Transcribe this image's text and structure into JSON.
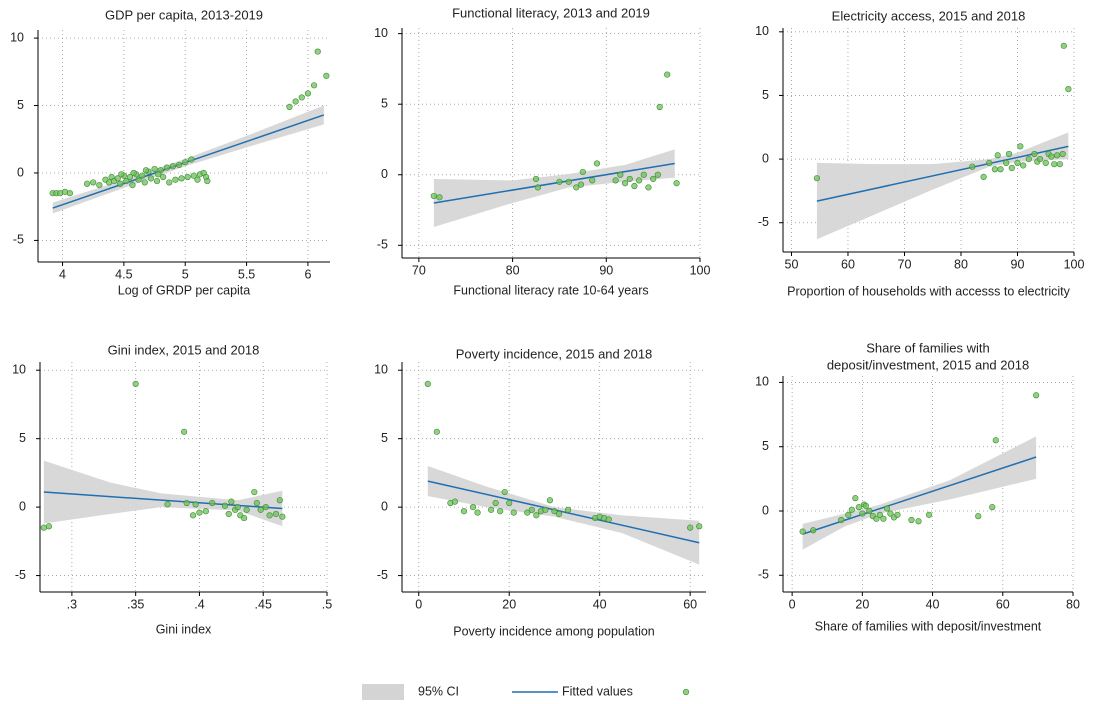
{
  "chart_data": [
    {
      "type": "scatter",
      "title": [
        "GDP per capita, 2013-2019"
      ],
      "xlabel": "Log of GRDP per capita",
      "xlim": [
        3.8,
        6.18
      ],
      "ylim": [
        -6.6,
        10.6
      ],
      "xticks": [
        4,
        4.5,
        5,
        5.5,
        6
      ],
      "yticks": [
        -5,
        0,
        5,
        10
      ],
      "grid": true,
      "ci": {
        "color": "#d4d4d4",
        "x": [
          3.92,
          4.5,
          5.0,
          5.5,
          6.13
        ],
        "lower": [
          -3.0,
          -1.1,
          0.5,
          1.9,
          3.6
        ],
        "upper": [
          -2.2,
          -0.5,
          1.05,
          2.75,
          5.0
        ]
      },
      "fit": {
        "color": "#1f6fb2",
        "x": [
          3.92,
          6.13
        ],
        "y": [
          -2.6,
          4.3
        ]
      },
      "scatter": {
        "color": "#6cc05a",
        "x": [
          3.92,
          3.95,
          3.98,
          4.02,
          4.06,
          4.2,
          4.25,
          4.3,
          4.35,
          4.38,
          4.4,
          4.42,
          4.45,
          4.47,
          4.5,
          4.52,
          4.55,
          4.57,
          4.6,
          4.62,
          4.65,
          4.67,
          4.7,
          4.72,
          4.75,
          4.77,
          4.8,
          4.82,
          4.85,
          4.87,
          4.9,
          4.92,
          4.95,
          4.97,
          5.0,
          5.02,
          5.05,
          5.07,
          5.1,
          5.12,
          5.15,
          5.17,
          5.18,
          4.48,
          4.58,
          4.68,
          4.78,
          5.85,
          5.9,
          5.95,
          6.0,
          6.05,
          6.08,
          6.15
        ],
        "y": [
          -1.5,
          -1.5,
          -1.5,
          -1.4,
          -1.5,
          -0.8,
          -0.7,
          -0.9,
          -0.5,
          -0.7,
          -0.3,
          -0.6,
          -0.4,
          -0.8,
          -0.2,
          -0.6,
          -0.3,
          -0.9,
          -0.1,
          -0.5,
          -0.2,
          -0.7,
          0.1,
          -0.4,
          0.3,
          -0.6,
          0.2,
          -0.3,
          0.4,
          -0.7,
          0.5,
          -0.5,
          0.6,
          -0.4,
          0.8,
          -0.3,
          1.0,
          -0.2,
          -0.5,
          -0.1,
          0.0,
          -0.3,
          -0.6,
          -0.1,
          0.0,
          0.2,
          -0.1,
          4.9,
          5.3,
          5.6,
          5.9,
          6.5,
          9.0,
          7.2
        ]
      }
    },
    {
      "type": "scatter",
      "title": [
        "Functional literacy, 2013 and 2019"
      ],
      "xlabel": "Functional literacy rate 10-64 years",
      "xlim": [
        68.2,
        100
      ],
      "ylim": [
        -5.9,
        10.4
      ],
      "xticks": [
        70,
        80,
        90,
        100
      ],
      "yticks": [
        -5,
        0,
        5,
        10
      ],
      "grid": true,
      "ci": {
        "color": "#d4d4d4",
        "x": [
          71.6,
          80,
          86,
          92,
          97.3
        ],
        "lower": [
          -3.7,
          -2.0,
          -0.9,
          -0.5,
          -0.2
        ],
        "upper": [
          -0.3,
          -0.4,
          0.05,
          0.7,
          1.8
        ]
      },
      "fit": {
        "color": "#1f6fb2",
        "x": [
          71.6,
          97.3
        ],
        "y": [
          -2.0,
          0.8
        ]
      },
      "scatter": {
        "color": "#6cc05a",
        "x": [
          71.6,
          72.2,
          82.5,
          82.7,
          85,
          86,
          86.8,
          87.3,
          87.5,
          88.5,
          89,
          91,
          91.5,
          92,
          92.5,
          93,
          93.5,
          94,
          94.5,
          95,
          95.5,
          95.7,
          96.5,
          97.5
        ],
        "y": [
          -1.5,
          -1.6,
          -0.3,
          -0.9,
          -0.5,
          -0.5,
          -0.9,
          -0.7,
          0.2,
          -0.4,
          0.8,
          -0.4,
          0.0,
          -0.6,
          -0.3,
          -0.8,
          -0.4,
          0.0,
          -0.9,
          -0.3,
          0.0,
          4.8,
          7.1,
          -0.6
        ]
      }
    },
    {
      "type": "scatter",
      "title": [
        "Electricity access, 2015 and 2018"
      ],
      "xlabel": "Proportion of households with accesss to electricity",
      "xlim": [
        48.5,
        100
      ],
      "ylim": [
        -7.3,
        10.3
      ],
      "xticks": [
        50,
        60,
        70,
        80,
        90,
        100
      ],
      "yticks": [
        -5,
        0,
        5,
        10
      ],
      "grid": true,
      "ci": {
        "color": "#d4d4d4",
        "x": [
          54.5,
          65,
          75,
          85,
          90,
          99
        ],
        "lower": [
          -6.3,
          -4.3,
          -2.4,
          -0.6,
          -0.2,
          0.0
        ],
        "upper": [
          -0.3,
          -0.4,
          -0.4,
          0.0,
          0.5,
          2.1
        ]
      },
      "fit": {
        "color": "#1f6fb2",
        "x": [
          54.5,
          99
        ],
        "y": [
          -3.3,
          1.0
        ]
      },
      "scatter": {
        "color": "#6cc05a",
        "x": [
          54.5,
          82,
          84,
          85,
          86,
          86.5,
          87,
          88,
          88.5,
          89,
          90,
          90.5,
          91,
          92,
          93,
          93.5,
          94,
          95,
          95.5,
          96,
          96.5,
          97,
          97.5,
          98,
          98.2,
          99
        ],
        "y": [
          -1.5,
          -0.6,
          -1.4,
          -0.3,
          -0.8,
          0.3,
          -0.8,
          -0.3,
          0.4,
          -0.7,
          -0.3,
          1.0,
          -0.5,
          0.0,
          0.4,
          -0.2,
          0.0,
          -0.3,
          0.4,
          0.2,
          -0.4,
          0.3,
          -0.4,
          0.4,
          8.9,
          5.5
        ]
      }
    },
    {
      "type": "scatter",
      "title": [
        "Gini index, 2015 and 2018"
      ],
      "xlabel": "Gini index",
      "xlim": [
        0.275,
        0.5
      ],
      "ylim": [
        -6.2,
        10.6
      ],
      "xticks": [
        {
          "value": 0.3,
          "label": ".3"
        },
        {
          "value": 0.35,
          "label": ".35"
        },
        {
          "value": 0.4,
          "label": ".4"
        },
        {
          "value": 0.45,
          "label": ".45"
        },
        {
          "value": 0.5,
          "label": ".5"
        }
      ],
      "yticks": [
        -5,
        0,
        5,
        10
      ],
      "grid": true,
      "ci": {
        "color": "#d4d4d4",
        "x": [
          0.278,
          0.33,
          0.37,
          0.43,
          0.465
        ],
        "lower": [
          -1.2,
          -0.5,
          0.0,
          -0.25,
          -1.4
        ],
        "upper": [
          3.4,
          1.8,
          1.0,
          0.5,
          1.2
        ]
      },
      "fit": {
        "color": "#1f6fb2",
        "x": [
          0.278,
          0.465
        ],
        "y": [
          1.1,
          -0.1
        ]
      },
      "scatter": {
        "color": "#6cc05a",
        "x": [
          0.278,
          0.282,
          0.35,
          0.375,
          0.388,
          0.39,
          0.395,
          0.397,
          0.4,
          0.405,
          0.41,
          0.42,
          0.423,
          0.425,
          0.428,
          0.43,
          0.432,
          0.435,
          0.437,
          0.443,
          0.445,
          0.448,
          0.452,
          0.455,
          0.46,
          0.463,
          0.465
        ],
        "y": [
          -1.5,
          -1.4,
          9.0,
          0.2,
          5.5,
          0.3,
          -0.6,
          0.2,
          -0.4,
          -0.3,
          0.3,
          0.1,
          -0.5,
          0.4,
          -0.2,
          0.0,
          -0.6,
          -0.8,
          -0.2,
          1.1,
          0.3,
          -0.2,
          0.0,
          -0.6,
          -0.5,
          0.5,
          -0.7
        ]
      }
    },
    {
      "type": "scatter",
      "title": [
        "Poverty incidence, 2015 and 2018"
      ],
      "xlabel": "Poverty incidence among population",
      "xlim": [
        -3.7,
        63.5
      ],
      "ylim": [
        -6.2,
        10.6
      ],
      "xticks": [
        0,
        20,
        40,
        60
      ],
      "yticks": [
        -5,
        0,
        5,
        10
      ],
      "grid": true,
      "ci": {
        "color": "#d4d4d4",
        "x": [
          2,
          15,
          30,
          45,
          62
        ],
        "lower": [
          0.8,
          0.0,
          -0.7,
          -1.9,
          -4.2
        ],
        "upper": [
          3.0,
          1.5,
          0.0,
          -0.6,
          -1.0
        ]
      },
      "fit": {
        "color": "#1f6fb2",
        "x": [
          2,
          62
        ],
        "y": [
          1.9,
          -2.6
        ]
      },
      "scatter": {
        "color": "#6cc05a",
        "x": [
          2,
          4,
          7,
          8,
          10,
          12,
          13,
          16,
          17,
          18,
          19,
          20,
          21,
          24,
          25,
          26,
          27,
          28,
          29,
          30,
          31,
          33,
          39,
          40,
          41,
          42,
          60,
          62
        ],
        "y": [
          9.0,
          5.5,
          0.3,
          0.4,
          -0.3,
          0.0,
          -0.4,
          -0.2,
          0.3,
          -0.3,
          1.1,
          0.3,
          -0.4,
          -0.4,
          -0.2,
          -0.6,
          -0.3,
          -0.2,
          0.5,
          -0.3,
          -0.5,
          -0.2,
          -0.8,
          -0.7,
          -0.8,
          -0.9,
          -1.5,
          -1.4
        ]
      }
    },
    {
      "type": "scatter",
      "title": [
        "Share of families with",
        "deposit/investment, 2015 and 2018"
      ],
      "xlabel": "Share of families with deposit/investment",
      "xlim": [
        -2.6,
        80
      ],
      "ylim": [
        -6.3,
        10.5
      ],
      "xticks": [
        0,
        20,
        40,
        60,
        80
      ],
      "yticks": [
        -5,
        0,
        5,
        10
      ],
      "grid": true,
      "ci": {
        "color": "#d4d4d4",
        "x": [
          3,
          15,
          25,
          45,
          69.5
        ],
        "lower": [
          -3.0,
          -1.2,
          -0.2,
          0.9,
          2.5
        ],
        "upper": [
          -1.0,
          -0.2,
          0.5,
          2.4,
          5.8
        ]
      },
      "fit": {
        "color": "#1f6fb2",
        "x": [
          3,
          69.5
        ],
        "y": [
          -1.8,
          4.2
        ]
      },
      "scatter": {
        "color": "#6cc05a",
        "x": [
          3,
          6,
          14,
          16,
          17,
          18,
          19,
          20,
          20.5,
          21,
          22,
          23,
          24,
          25,
          26,
          27,
          28,
          29,
          30,
          34,
          36,
          39,
          53,
          57,
          58,
          69.5
        ],
        "y": [
          -1.6,
          -1.5,
          -0.7,
          -0.3,
          0.1,
          1.0,
          0.3,
          -0.2,
          0.5,
          0.4,
          0.0,
          -0.4,
          -0.6,
          -0.3,
          -0.6,
          0.2,
          -0.2,
          -0.5,
          -0.3,
          -0.7,
          -0.8,
          -0.3,
          -0.4,
          0.3,
          5.5,
          9.0
        ]
      }
    }
  ],
  "legend": [
    {
      "label": "95% CI",
      "color": "#d4d4d4"
    },
    {
      "label": "Fitted values",
      "color": "#1f6fb2"
    },
    {
      "color": "#6cc05a"
    }
  ]
}
